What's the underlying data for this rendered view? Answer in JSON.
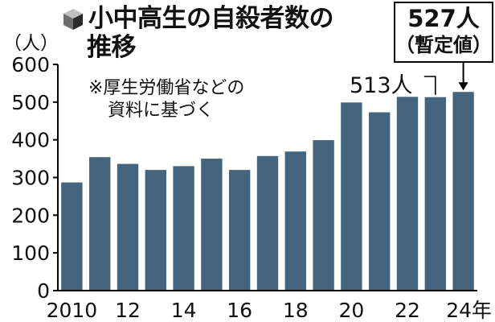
{
  "title_line1": "小中高生の自殺者数の",
  "title_line2": "推移",
  "unit_label": "（人）",
  "note_line1": "※厚生労働省などの",
  "note_line2": "資料に基づく",
  "callout": {
    "value": "527人",
    "note": "（暫定値）"
  },
  "annotation_513": "513人",
  "colors": {
    "bar": "#45657f",
    "axis": "#000000"
  },
  "chart_data": {
    "type": "bar",
    "title": "小中高生の自殺者数の推移",
    "ylabel": "（人）",
    "ylim": [
      0,
      600
    ],
    "y_ticks": [
      0,
      100,
      200,
      300,
      400,
      500,
      600
    ],
    "categories": [
      "2010",
      "2011",
      "2012",
      "2013",
      "2014",
      "2015",
      "2016",
      "2017",
      "2018",
      "2019",
      "2020",
      "2021",
      "2022",
      "2023",
      "2024"
    ],
    "x_tick_labels": [
      "2010",
      "",
      "12",
      "",
      "14",
      "",
      "16",
      "",
      "18",
      "",
      "20",
      "",
      "22",
      "",
      "24年"
    ],
    "values": [
      287,
      354,
      336,
      320,
      330,
      350,
      320,
      357,
      369,
      399,
      499,
      473,
      514,
      513,
      527
    ],
    "grid": false
  }
}
